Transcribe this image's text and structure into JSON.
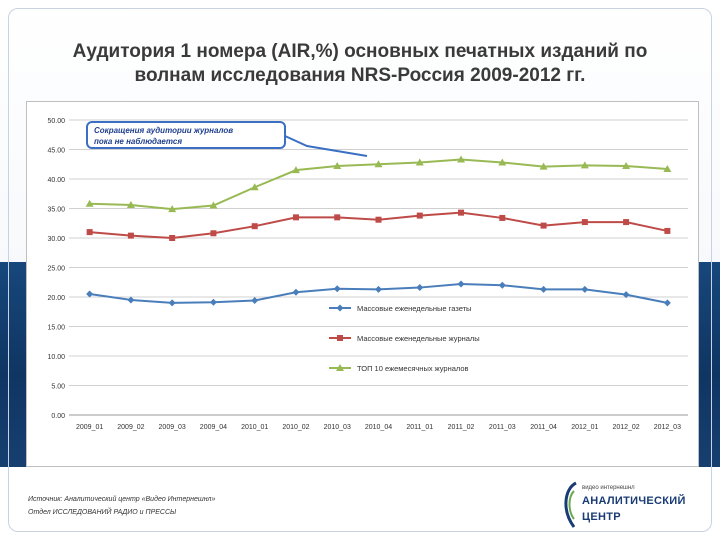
{
  "slide": {
    "title_line1": "Аудитория 1 номера (AIR,%) основных печатных изданий по",
    "title_line2": "волнам исследования NRS-Россия 2009-2012 гг.",
    "callout_line1": "Сокращения аудитории журналов",
    "callout_line2": "пока не наблюдается",
    "source_line1": "Источник: Аналитический центр «Видео Интернешнл»",
    "source_line2": "Отдел ИССЛЕДОВАНИЙ РАДИО и ПРЕССЫ",
    "logo_small": "видео интернешнл",
    "logo_line1": "АНАЛИТИЧЕСКИЙ",
    "logo_line2": "ЦЕНТР"
  },
  "colors": {
    "band": "#0f3563",
    "series_blue": "#4a7ebb",
    "series_red": "#be4b48",
    "series_green": "#98b954",
    "callout_border": "#3a6fc4"
  },
  "chart_data": {
    "type": "line",
    "title": "Аудитория 1 номера (AIR,%) основных печатных изданий по волнам исследования NRS-Россия 2009-2012 гг.",
    "categories": [
      "2009_01",
      "2009_02",
      "2009_03",
      "2009_04",
      "2010_01",
      "2010_02",
      "2010_03",
      "2010_04",
      "2011_01",
      "2011_02",
      "2011_03",
      "2011_04",
      "2012_01",
      "2012_02",
      "2012_03"
    ],
    "ylim": [
      0,
      50
    ],
    "yticks": [
      "0.00",
      "5.00",
      "10.00",
      "15.00",
      "20.00",
      "25.00",
      "30.00",
      "35.00",
      "40.00",
      "45.00",
      "50.00"
    ],
    "grid": true,
    "legend_position": "center-right",
    "series": [
      {
        "name": "Массовые еженедельные газеты",
        "marker": "diamond",
        "color": "#4a7ebb",
        "values": [
          20.5,
          19.5,
          19.0,
          19.1,
          19.4,
          20.8,
          21.4,
          21.3,
          21.6,
          22.2,
          22.0,
          21.3,
          21.3,
          20.4,
          19.0
        ]
      },
      {
        "name": "Массовые еженедельные журналы",
        "marker": "square",
        "color": "#be4b48",
        "values": [
          31.0,
          30.4,
          30.0,
          30.8,
          32.0,
          33.5,
          33.5,
          33.1,
          33.8,
          34.3,
          33.4,
          32.1,
          32.7,
          32.7,
          31.2
        ]
      },
      {
        "name": "ТОП 10 ежемесячных журналов",
        "marker": "triangle",
        "color": "#98b954",
        "values": [
          35.8,
          35.6,
          34.9,
          35.5,
          38.6,
          41.5,
          42.2,
          42.5,
          42.8,
          43.3,
          42.8,
          42.1,
          42.3,
          42.2,
          41.7
        ]
      }
    ]
  }
}
